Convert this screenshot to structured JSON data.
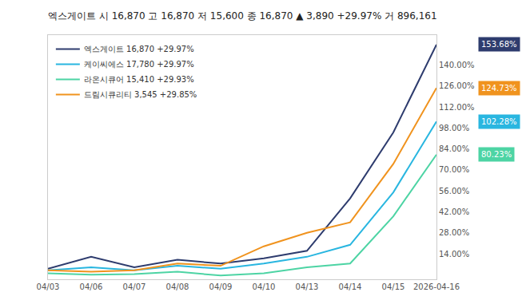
{
  "chart_data": {
    "type": "line",
    "title": "엑스게이트 시 16,870 고 16,870 저 15,600 종 16,870 ▲ 3,890 +29.97% 거 896,161",
    "categories": [
      "04/03",
      "04/06",
      "04/07",
      "04/08",
      "04/09",
      "04/10",
      "04/13",
      "04/14",
      "04/15",
      "2026-04-16"
    ],
    "series": [
      {
        "name": "엑스게이트 16,870 +29.97%",
        "color": "#2e3c6e",
        "values": [
          4,
          12,
          5,
          10,
          7.5,
          11,
          16,
          51,
          95,
          153.68
        ],
        "value_labels": [
          null,
          null,
          null,
          null,
          null,
          null,
          null,
          null,
          null,
          "153.68%"
        ]
      },
      {
        "name": "케이씨에스 17,780 +29.97%",
        "color": "#29b6e0",
        "values": [
          3,
          5,
          3,
          6,
          4,
          7.5,
          12,
          20,
          55,
          102.28
        ],
        "value_labels": [
          null,
          null,
          null,
          null,
          null,
          null,
          null,
          null,
          null,
          "102.28%"
        ]
      },
      {
        "name": "라온시큐어 15,410 +29.93%",
        "color": "#4dd4a4",
        "values": [
          1,
          0,
          0.5,
          2,
          -0.5,
          1,
          5,
          7.5,
          39,
          80.23
        ],
        "value_labels": [
          null,
          null,
          null,
          null,
          null,
          null,
          null,
          null,
          null,
          "80.23%"
        ]
      },
      {
        "name": "드림시큐리티 3,545 +29.85%",
        "color": "#f0931e",
        "values": [
          3,
          2,
          3,
          7.5,
          6,
          19,
          28,
          35,
          74,
          124.73
        ],
        "value_labels": [
          null,
          null,
          null,
          null,
          null,
          null,
          null,
          null,
          null,
          "124.73%"
        ]
      }
    ],
    "ylim": [
      -3,
      160
    ],
    "yticks": [
      {
        "value": 14,
        "label": "14.00%"
      },
      {
        "value": 28,
        "label": "28.00%"
      },
      {
        "value": 42,
        "label": "42.00%"
      },
      {
        "value": 56,
        "label": "56.00%"
      },
      {
        "value": 70,
        "label": "70.00%"
      },
      {
        "value": 84,
        "label": "84.00%"
      },
      {
        "value": 98,
        "label": "98.00%"
      },
      {
        "value": 112,
        "label": "112.00%"
      },
      {
        "value": 126,
        "label": "126.00%"
      },
      {
        "value": 140,
        "label": "140.00%"
      }
    ],
    "grid": false,
    "legend": "upper left"
  }
}
